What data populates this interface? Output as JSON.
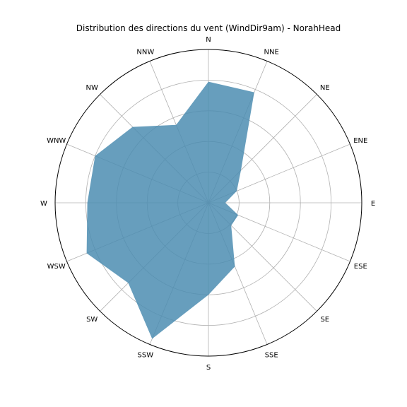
{
  "chart_data": {
    "type": "radar",
    "title": "Distribution des directions du vent (WindDir9am) - NorahHead",
    "directions": [
      "N",
      "NNE",
      "NE",
      "ENE",
      "E",
      "ESE",
      "SE",
      "SSE",
      "S",
      "SSW",
      "SW",
      "WSW",
      "W",
      "WNW",
      "NNW",
      "NW"
    ],
    "order_clockwise_from_north": [
      "N",
      "NNE",
      "NE",
      "ENE",
      "E",
      "ESE",
      "SE",
      "SSE",
      "S",
      "SSW",
      "SW",
      "WSW",
      "W",
      "WNW",
      "NW",
      "NNW"
    ],
    "values": {
      "N": 0.79,
      "NNE": 0.78,
      "NE": 0.3,
      "ENE": 0.2,
      "E": 0.11,
      "ESE": 0.21,
      "SE": 0.21,
      "SSE": 0.45,
      "S": 0.6,
      "SSW": 0.96,
      "SW": 0.74,
      "WSW": 0.86,
      "W": 0.79,
      "WNW": 0.8,
      "NW": 0.7,
      "NNW": 0.55
    },
    "rlim": [
      0,
      1
    ],
    "grid": true,
    "fill_color": "#4c8db2",
    "fill_opacity": 0.85,
    "frame_color": "#000000",
    "grid_color": "#b0b0b0"
  }
}
